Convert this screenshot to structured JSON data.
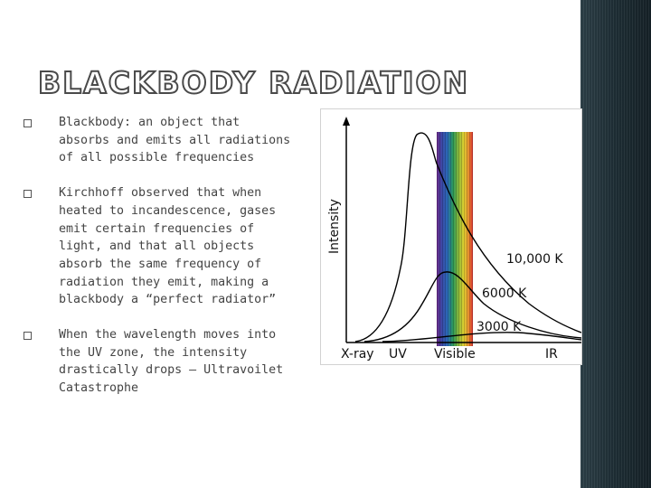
{
  "slide": {
    "title": "BLACKBODY RADIATION",
    "bullets": [
      {
        "text": "Blackbody: an object that absorbs and emits all radiations of all possible frequencies"
      },
      {
        "text": "Kirchhoff observed that when heated to incandescence, gases emit certain frequencies of light, and that all objects absorb the same frequency of radiation they emit, making a blackbody a “perfect radiator”"
      },
      {
        "text": "When the wavelength moves into the UV zone, the intensity drastically drops – Ultravoilet Catastrophe"
      }
    ]
  },
  "chart_data": {
    "type": "line",
    "ylabel": "Intensity",
    "region_labels": [
      "X-ray",
      "UV",
      "Visible",
      "IR"
    ],
    "series": [
      {
        "name": "10,000 K"
      },
      {
        "name": "6000 K"
      },
      {
        "name": "3000 K"
      }
    ],
    "grid": false,
    "legend": "none"
  },
  "colors": {
    "title_outline": "#4a4a4a",
    "body_text": "#444444",
    "side_bar": "#1e2e35",
    "spectrum": [
      "#6a2a8a",
      "#3a4aa8",
      "#2a6ab8",
      "#2a9a5a",
      "#8ab83a",
      "#e0d030",
      "#e89030",
      "#d83030"
    ]
  }
}
